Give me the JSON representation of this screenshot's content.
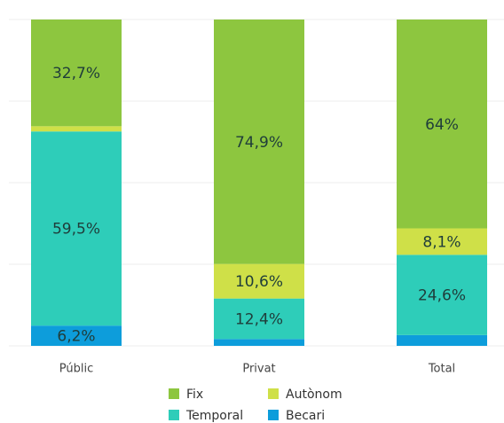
{
  "chart_data": {
    "type": "stacked_bar",
    "categories": [
      "Públic",
      "Privat",
      "Total"
    ],
    "series": [
      {
        "name": "Becari",
        "color": "#0d9ddb",
        "values": [
          6.2,
          2.1,
          3.3
        ],
        "value_labels": [
          "6,2%",
          null,
          null
        ]
      },
      {
        "name": "Temporal",
        "color": "#2ecdb9",
        "values": [
          59.5,
          12.4,
          24.6
        ],
        "value_labels": [
          "59,5%",
          "12,4%",
          "24,6%"
        ]
      },
      {
        "name": "Autònom",
        "color": "#cfe048",
        "values": [
          1.6,
          10.6,
          8.1
        ],
        "value_labels": [
          null,
          "10,6%",
          "8,1%"
        ]
      },
      {
        "name": "Fix",
        "color": "#8dc63f",
        "values": [
          32.7,
          74.9,
          64
        ],
        "value_labels": [
          "32,7%",
          "74,9%",
          "64%"
        ]
      }
    ],
    "ylim": [
      0,
      100
    ],
    "yticks": [
      0,
      25,
      50,
      75,
      100
    ],
    "grid": true
  }
}
